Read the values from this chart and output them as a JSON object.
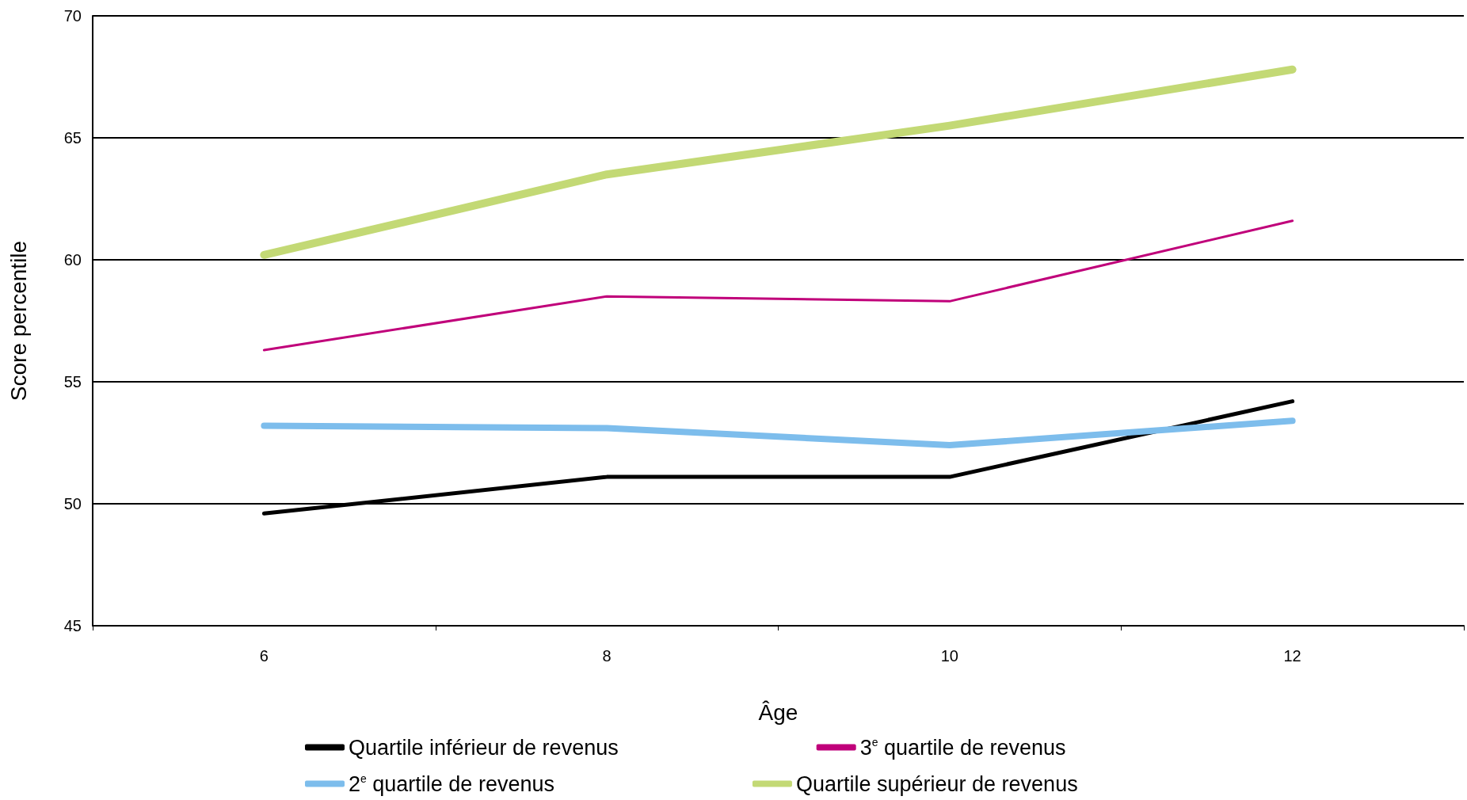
{
  "chart_data": {
    "type": "line",
    "xlabel": "Âge",
    "ylabel": "Score percentile",
    "categories": [
      "6",
      "8",
      "10",
      "12"
    ],
    "series": [
      {
        "name": "Quartile inférieur de revenus",
        "color": "#000000",
        "values": [
          49.6,
          51.1,
          51.1,
          54.2
        ]
      },
      {
        "name": "3$^{e}$ quartile de revenus",
        "color": "#c0007a",
        "values": [
          56.3,
          58.5,
          58.3,
          61.6
        ]
      },
      {
        "name": "2$^{e}$ quartile de revenus",
        "color": "#7dbdec",
        "values": [
          53.2,
          53.1,
          52.4,
          53.4
        ]
      },
      {
        "name": "Quartile supérieur de revenus",
        "color": "#c3d975",
        "values": [
          60.2,
          63.5,
          65.5,
          67.8
        ]
      }
    ],
    "ylim": [
      45,
      70
    ],
    "yticks": [
      45,
      50,
      55,
      60,
      65,
      70
    ],
    "grid": "y",
    "legend": "bottom",
    "marker": "none",
    "line_style": "solid"
  }
}
